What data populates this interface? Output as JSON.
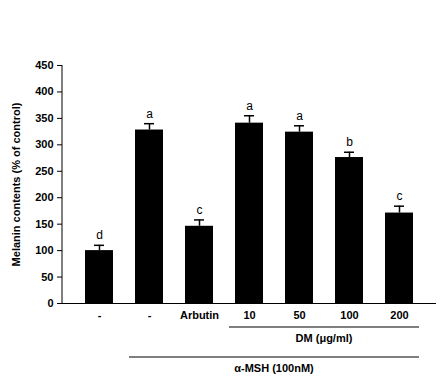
{
  "chart_data": {
    "type": "bar",
    "y_label": "Melanin contents (% of control)",
    "categories": [
      "-",
      "-",
      "Arbutin",
      "10",
      "50",
      "100",
      "200"
    ],
    "values": [
      100,
      328,
      146,
      341,
      324,
      276,
      171
    ],
    "errors": [
      10,
      12,
      12,
      14,
      12,
      10,
      13
    ],
    "significance": [
      "d",
      "a",
      "c",
      "a",
      "a",
      "b",
      "c"
    ],
    "groups": [
      {
        "label": "DM (μg/ml)",
        "from": 3,
        "to": 6
      },
      {
        "label": "α-MSH (100nM)",
        "from": 1,
        "to": 6
      }
    ],
    "color": "#000000",
    "ylim": [
      0,
      450
    ],
    "yticks": [
      0,
      50,
      100,
      150,
      200,
      250,
      300,
      350,
      400,
      450
    ],
    "grid": false
  }
}
